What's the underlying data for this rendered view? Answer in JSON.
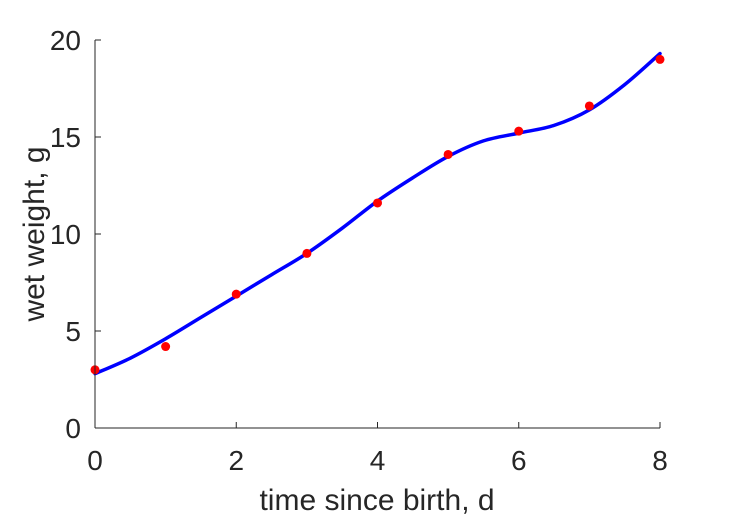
{
  "chart_data": {
    "type": "scatter",
    "title": "",
    "xlabel": "time since birth, d",
    "ylabel": "wet weight, g",
    "xlim": [
      0,
      8
    ],
    "ylim": [
      0,
      20
    ],
    "xticks": [
      0,
      2,
      4,
      6,
      8
    ],
    "yticks": [
      0,
      5,
      10,
      15,
      20
    ],
    "grid": false,
    "legend": "none",
    "series": [
      {
        "kind": "points",
        "color": "#ff0000",
        "x": [
          0,
          1,
          2,
          3,
          4,
          5,
          6,
          7,
          8
        ],
        "y": [
          3.0,
          4.2,
          6.9,
          9.0,
          11.6,
          14.1,
          15.3,
          16.6,
          19.0
        ]
      },
      {
        "kind": "fitted-curve",
        "color": "#0000ff",
        "x": [
          0,
          0.5,
          1,
          1.5,
          2,
          2.5,
          3,
          3.5,
          4,
          4.5,
          5,
          5.5,
          6,
          6.5,
          7,
          7.5,
          8
        ],
        "y": [
          2.8,
          3.6,
          4.6,
          5.7,
          6.8,
          7.9,
          9.0,
          10.3,
          11.7,
          12.9,
          14.0,
          14.8,
          15.2,
          15.6,
          16.4,
          17.7,
          19.3
        ]
      }
    ]
  }
}
